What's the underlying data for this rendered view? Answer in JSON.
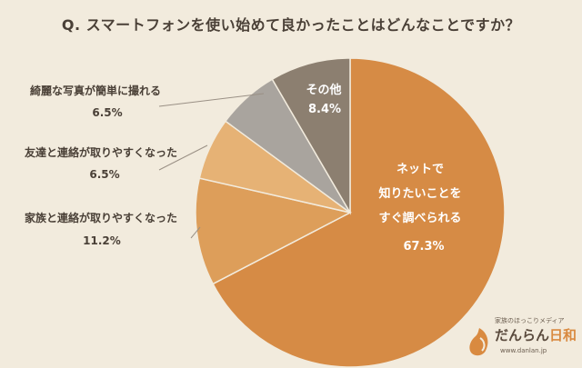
{
  "title": "Q. スマートフォンを使い始めて良かったことはどんなことですか？",
  "chart_data": {
    "type": "pie",
    "title": "Q. スマートフォンを使い始めて良かったことはどんなことですか？",
    "start_angle_deg": 0,
    "direction": "clockwise",
    "slices": [
      {
        "label": "ネットで知りたいことをすぐ調べられる",
        "label_lines": [
          "ネットで",
          "知りたいことを",
          "すぐ調べられる"
        ],
        "value": 67.3,
        "value_text": "67.3%",
        "color": "#d68b45"
      },
      {
        "label": "家族と連絡が取りやすくなった",
        "value": 11.2,
        "value_text": "11.2%",
        "color": "#dd9e5a"
      },
      {
        "label": "友達と連絡が取りやすくなった",
        "value": 6.5,
        "value_text": "6.5%",
        "color": "#e6b275"
      },
      {
        "label": "綺麗な写真が簡単に撮れる",
        "value": 6.5,
        "value_text": "6.5%",
        "color": "#a9a49e"
      },
      {
        "label": "その他",
        "value": 8.4,
        "value_text": "8.4%",
        "color": "#8c7f70"
      }
    ]
  },
  "brand": {
    "tagline": "家族のほっこりメディア",
    "name": "だんらん",
    "name_accent": "日和",
    "url": "www.danlan.jp"
  }
}
